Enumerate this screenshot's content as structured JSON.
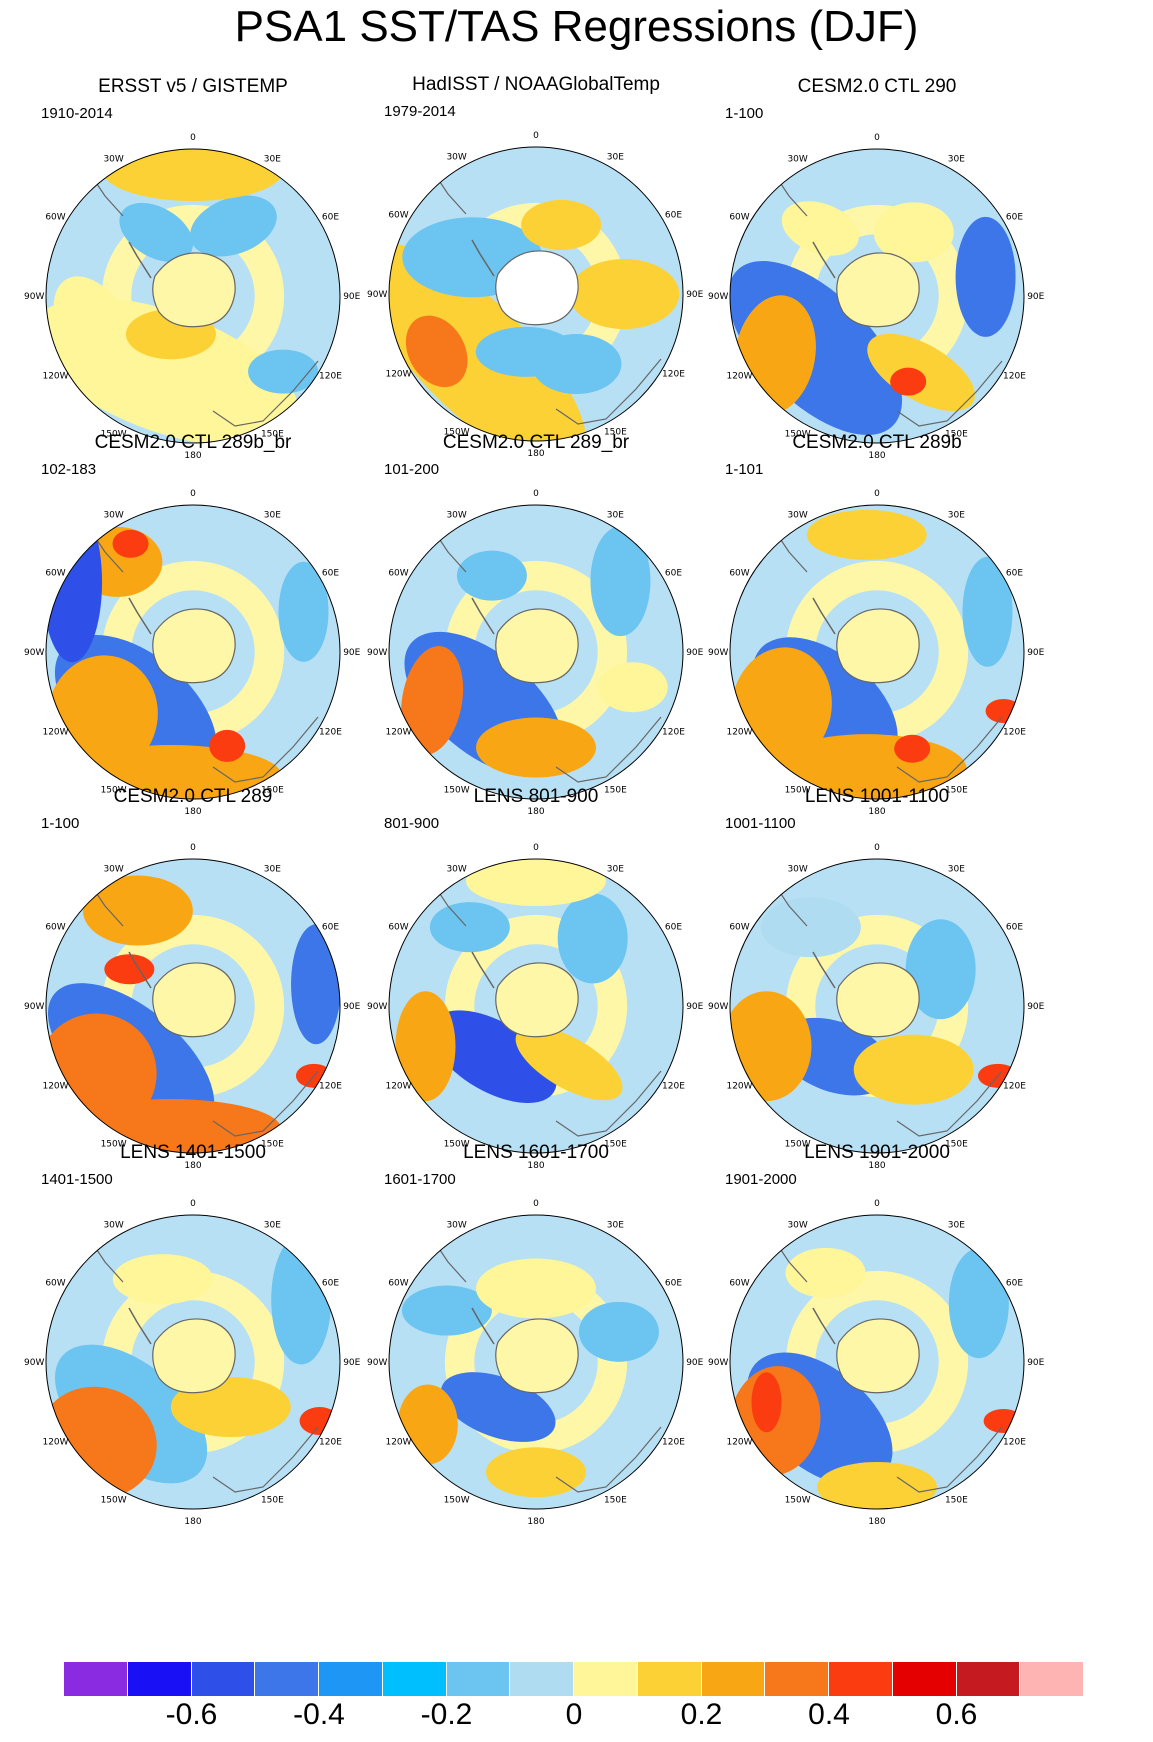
{
  "figure": {
    "title": "PSA1 SST/TAS Regressions (DJF)",
    "longitude_labels": [
      "0",
      "30E",
      "60E",
      "90E",
      "120E",
      "150E",
      "180",
      "150W",
      "120W",
      "90W",
      "60W",
      "30W"
    ],
    "panels": [
      {
        "title": "ERSST v5 / GISTEMP",
        "period": "1910-2014"
      },
      {
        "title": "HadISST / NOAAGlobalTemp",
        "period": "1979-2014"
      },
      {
        "title": "CESM2.0 CTL 290",
        "period": "1-100"
      },
      {
        "title": "CESM2.0 CTL 289b_br",
        "period": "102-183"
      },
      {
        "title": "CESM2.0 CTL 289_br",
        "period": "101-200"
      },
      {
        "title": "CESM2.0 CTL 289b",
        "period": "1-101"
      },
      {
        "title": "CESM2.0 CTL 289",
        "period": "1-100"
      },
      {
        "title": "LENS 801-900",
        "period": "801-900"
      },
      {
        "title": "LENS 1001-1100",
        "period": "1001-1100"
      },
      {
        "title": "LENS 1401-1500",
        "period": "1401-1500"
      },
      {
        "title": "LENS 1601-1700",
        "period": "1601-1700"
      },
      {
        "title": "LENS 1901-2000",
        "period": "1901-2000"
      }
    ]
  },
  "colorbar": {
    "colors": [
      "#8a2be2",
      "#1a10f5",
      "#2e50e8",
      "#3c76e8",
      "#1e96f5",
      "#00bfff",
      "#6cc4f0",
      "#b0dcf2",
      "#fff599",
      "#fcd135",
      "#f9a614",
      "#f6781a",
      "#fa3c10",
      "#e40000",
      "#c41a20",
      "#ffb4b4"
    ],
    "labels": [
      "-0.6",
      "-0.4",
      "-0.2",
      "0",
      "0.2",
      "0.4",
      "0.6"
    ],
    "label_values": [
      -0.6,
      -0.4,
      -0.2,
      0,
      0.2,
      0.4,
      0.6
    ],
    "min": -0.8,
    "max": 0.8
  }
}
